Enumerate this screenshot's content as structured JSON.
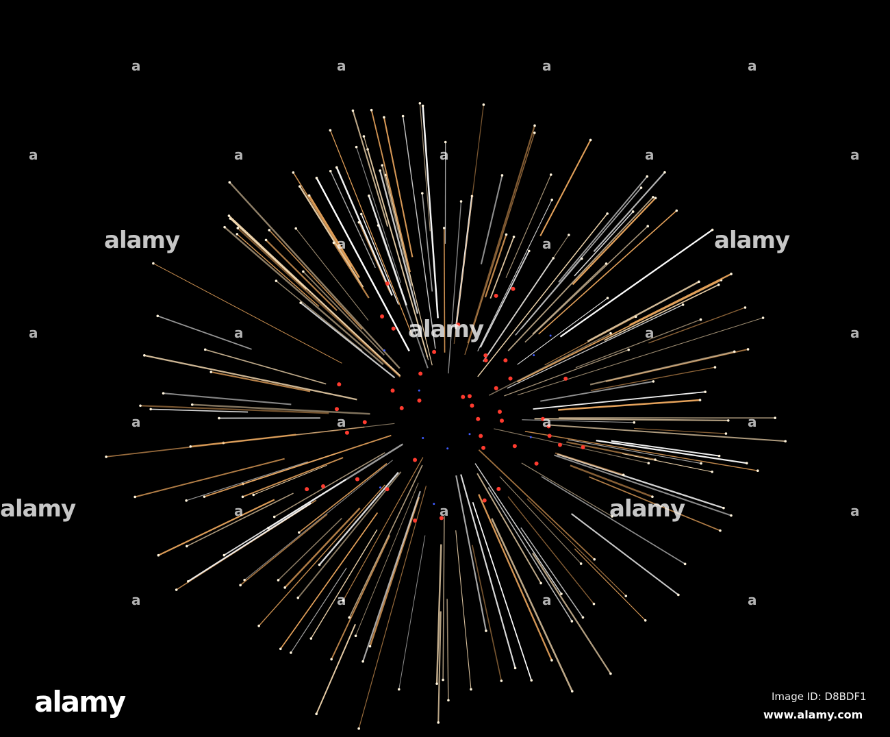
{
  "image": {
    "subject": "firework burst",
    "background_color": "#000000",
    "streak_colors": [
      "#f4d9b0",
      "#e8a45c",
      "#ffffff"
    ],
    "spark_colors": [
      "#ff3b2f",
      "#3f5cff"
    ]
  },
  "watermark": {
    "text": "alamy",
    "small_text": "a"
  },
  "footer": {
    "logo": "alamy",
    "image_id": "Image ID: D8BDF1",
    "website": "www.alamy.com"
  }
}
